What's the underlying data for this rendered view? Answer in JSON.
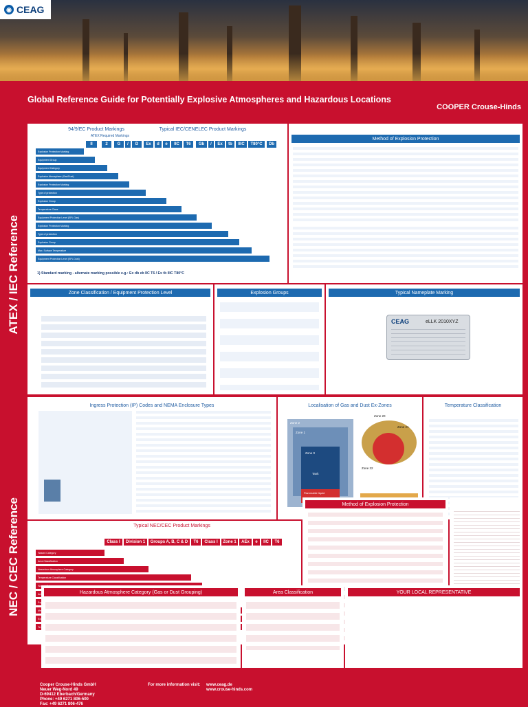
{
  "brand": {
    "logo": "CEAG",
    "logo_icon": "ceag-globe-icon",
    "partner": "COOPER Crouse-Hinds"
  },
  "title": "Global Reference Guide for Potentially Explosive Atmospheres and Hazardous Locations",
  "side_labels": {
    "atex": "ATEX / IEC Reference",
    "nec": "NEC / CEC Reference"
  },
  "atex_markings": {
    "left_heading": "94/9/EC Product Markings",
    "right_heading": "Typical IEC/CENELEC Product Markings",
    "sub_heading": "ATEX Required Markings",
    "codes": [
      "II",
      "2",
      "G",
      "/",
      "D",
      "Ex",
      "d",
      "e",
      "IIC",
      "T6",
      "Gb",
      "/",
      "Ex",
      "tb",
      "IIIC",
      "T80°C",
      "Db"
    ],
    "labels": [
      "Explosion Protection Marking",
      "Equipment Group",
      "Equipment Category",
      "Explosive Atmosphere (Gas/Dust)",
      "Explosion Protection Marking",
      "Type of protection",
      "Explosion Group",
      "Temperature Class",
      "Equipment Protection Level (EPL Gas)",
      "Explosion Protection Marking",
      "Type of protection",
      "Explosion Group",
      "Max. Surface Temperature",
      "Equipment Protection Level (EPL Dust)"
    ],
    "footnote": "1) Standard marking - alternate marking possible e.g.: Ex db eb IIC T6 / Ex tb IIIC T80°C"
  },
  "panels": {
    "method_atex": "Method of Explosion Protection",
    "zone": "Zone Classification / Equipment Protection Level",
    "explosion_groups": "Explosion Groups",
    "nameplate": "Typical Nameplate Marking",
    "ip": "Ingress Protection (IP) Codes and NEMA Enclosure Types",
    "localisation": "Localisation of Gas and Dust Ex-Zones",
    "temperature": "Temperature Classification",
    "nec_markings": "Typical NEC/CEC Product Markings",
    "method_nec": "Method of Explosion Protection",
    "hazardous": "Hazardous Atmosphere Category (Gas or Dust Grouping)",
    "area": "Area Classification",
    "representative": "YOUR LOCAL REPRESENTATIVE"
  },
  "nec_codes": [
    "Class I",
    "Division 1",
    "Groups A, B, C & D",
    "T6",
    "Class I",
    "Zone 1",
    "AEx",
    "e",
    "IIC",
    "T6"
  ],
  "nec_labels": [
    "Hazard Category",
    "Area Classification",
    "Hazardous Atmosphere Category",
    "Temperature Classification",
    "Hazard Category",
    "Area Classification",
    "Explosion Protection Marking",
    "Method of Explosion Protection",
    "Explosion Group",
    "Temperature Classification"
  ],
  "nameplate": {
    "brand": "CEAG",
    "model": "eLLK 2010XYZ"
  },
  "zones": {
    "zone20": "Zone 20",
    "zone21": "Zone 21",
    "zone22": "Zone 22",
    "zone0": "Zone 0",
    "zone1": "Zone 1",
    "zone2": "Zone 2",
    "tank": "Tank",
    "liquid": "Flammable liquid",
    "dust": "Flammable Dust"
  },
  "footer": {
    "company": "Cooper Crouse-Hinds GmbH",
    "street": "Neuer Weg-Nord 49",
    "city": "D-69412 Eberbach/Germany",
    "phone_label": "Phone:",
    "phone": "+49 6271 806-500",
    "fax_label": "Fax:",
    "fax": "+49 6271 806-476",
    "info": "For more information visit:",
    "web1": "www.ceag.de",
    "web2": "www.crouse-hinds.com"
  }
}
